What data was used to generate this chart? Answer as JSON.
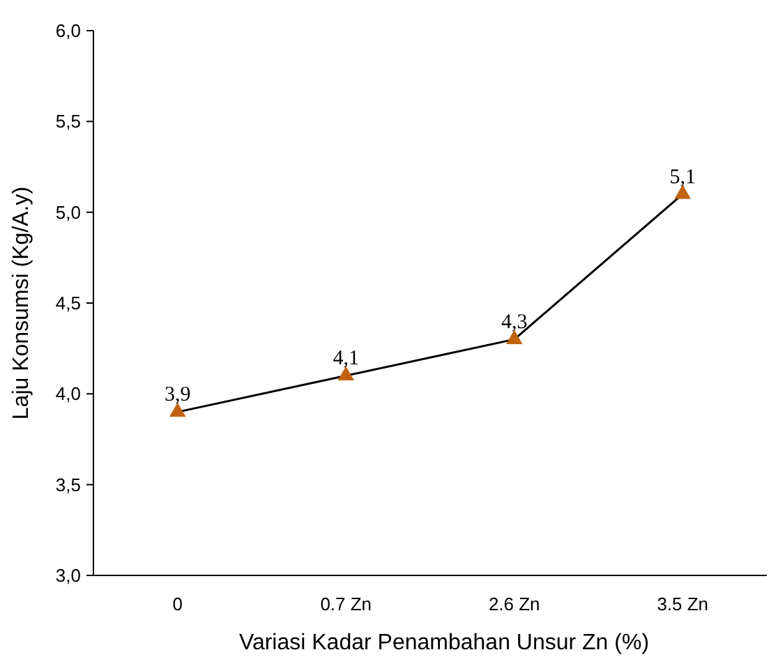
{
  "chart_data": {
    "type": "line",
    "xlabel": "Variasi Kadar Penambahan Unsur Zn (%)",
    "ylabel": "Laju Konsumsi (Kg/A.y)",
    "categories": [
      "0",
      "0.7 Zn",
      "2.6 Zn",
      "3.5 Zn"
    ],
    "series": [
      {
        "color": "#000000",
        "colors": [
          "#c0620f",
          "#c0620f",
          "#c0620f",
          "#c0620f"
        ],
        "values": [
          3.9,
          4.1,
          4.3,
          5.1
        ],
        "value_labels": [
          "3,9",
          "4,1",
          "4,3",
          "5,1"
        ]
      }
    ],
    "marker": "triangle",
    "line_style": "solid",
    "ylim": [
      3,
      6
    ],
    "yticks": [
      {
        "value": 3,
        "label": "3,0"
      },
      {
        "value": 3.5,
        "label": "3,5"
      },
      {
        "value": 4,
        "label": "4,0"
      },
      {
        "value": 4.5,
        "label": "4,5"
      },
      {
        "value": 5,
        "label": "5,0"
      },
      {
        "value": 5.5,
        "label": "5,5"
      },
      {
        "value": 6,
        "label": "6,0"
      }
    ],
    "grid": false
  }
}
